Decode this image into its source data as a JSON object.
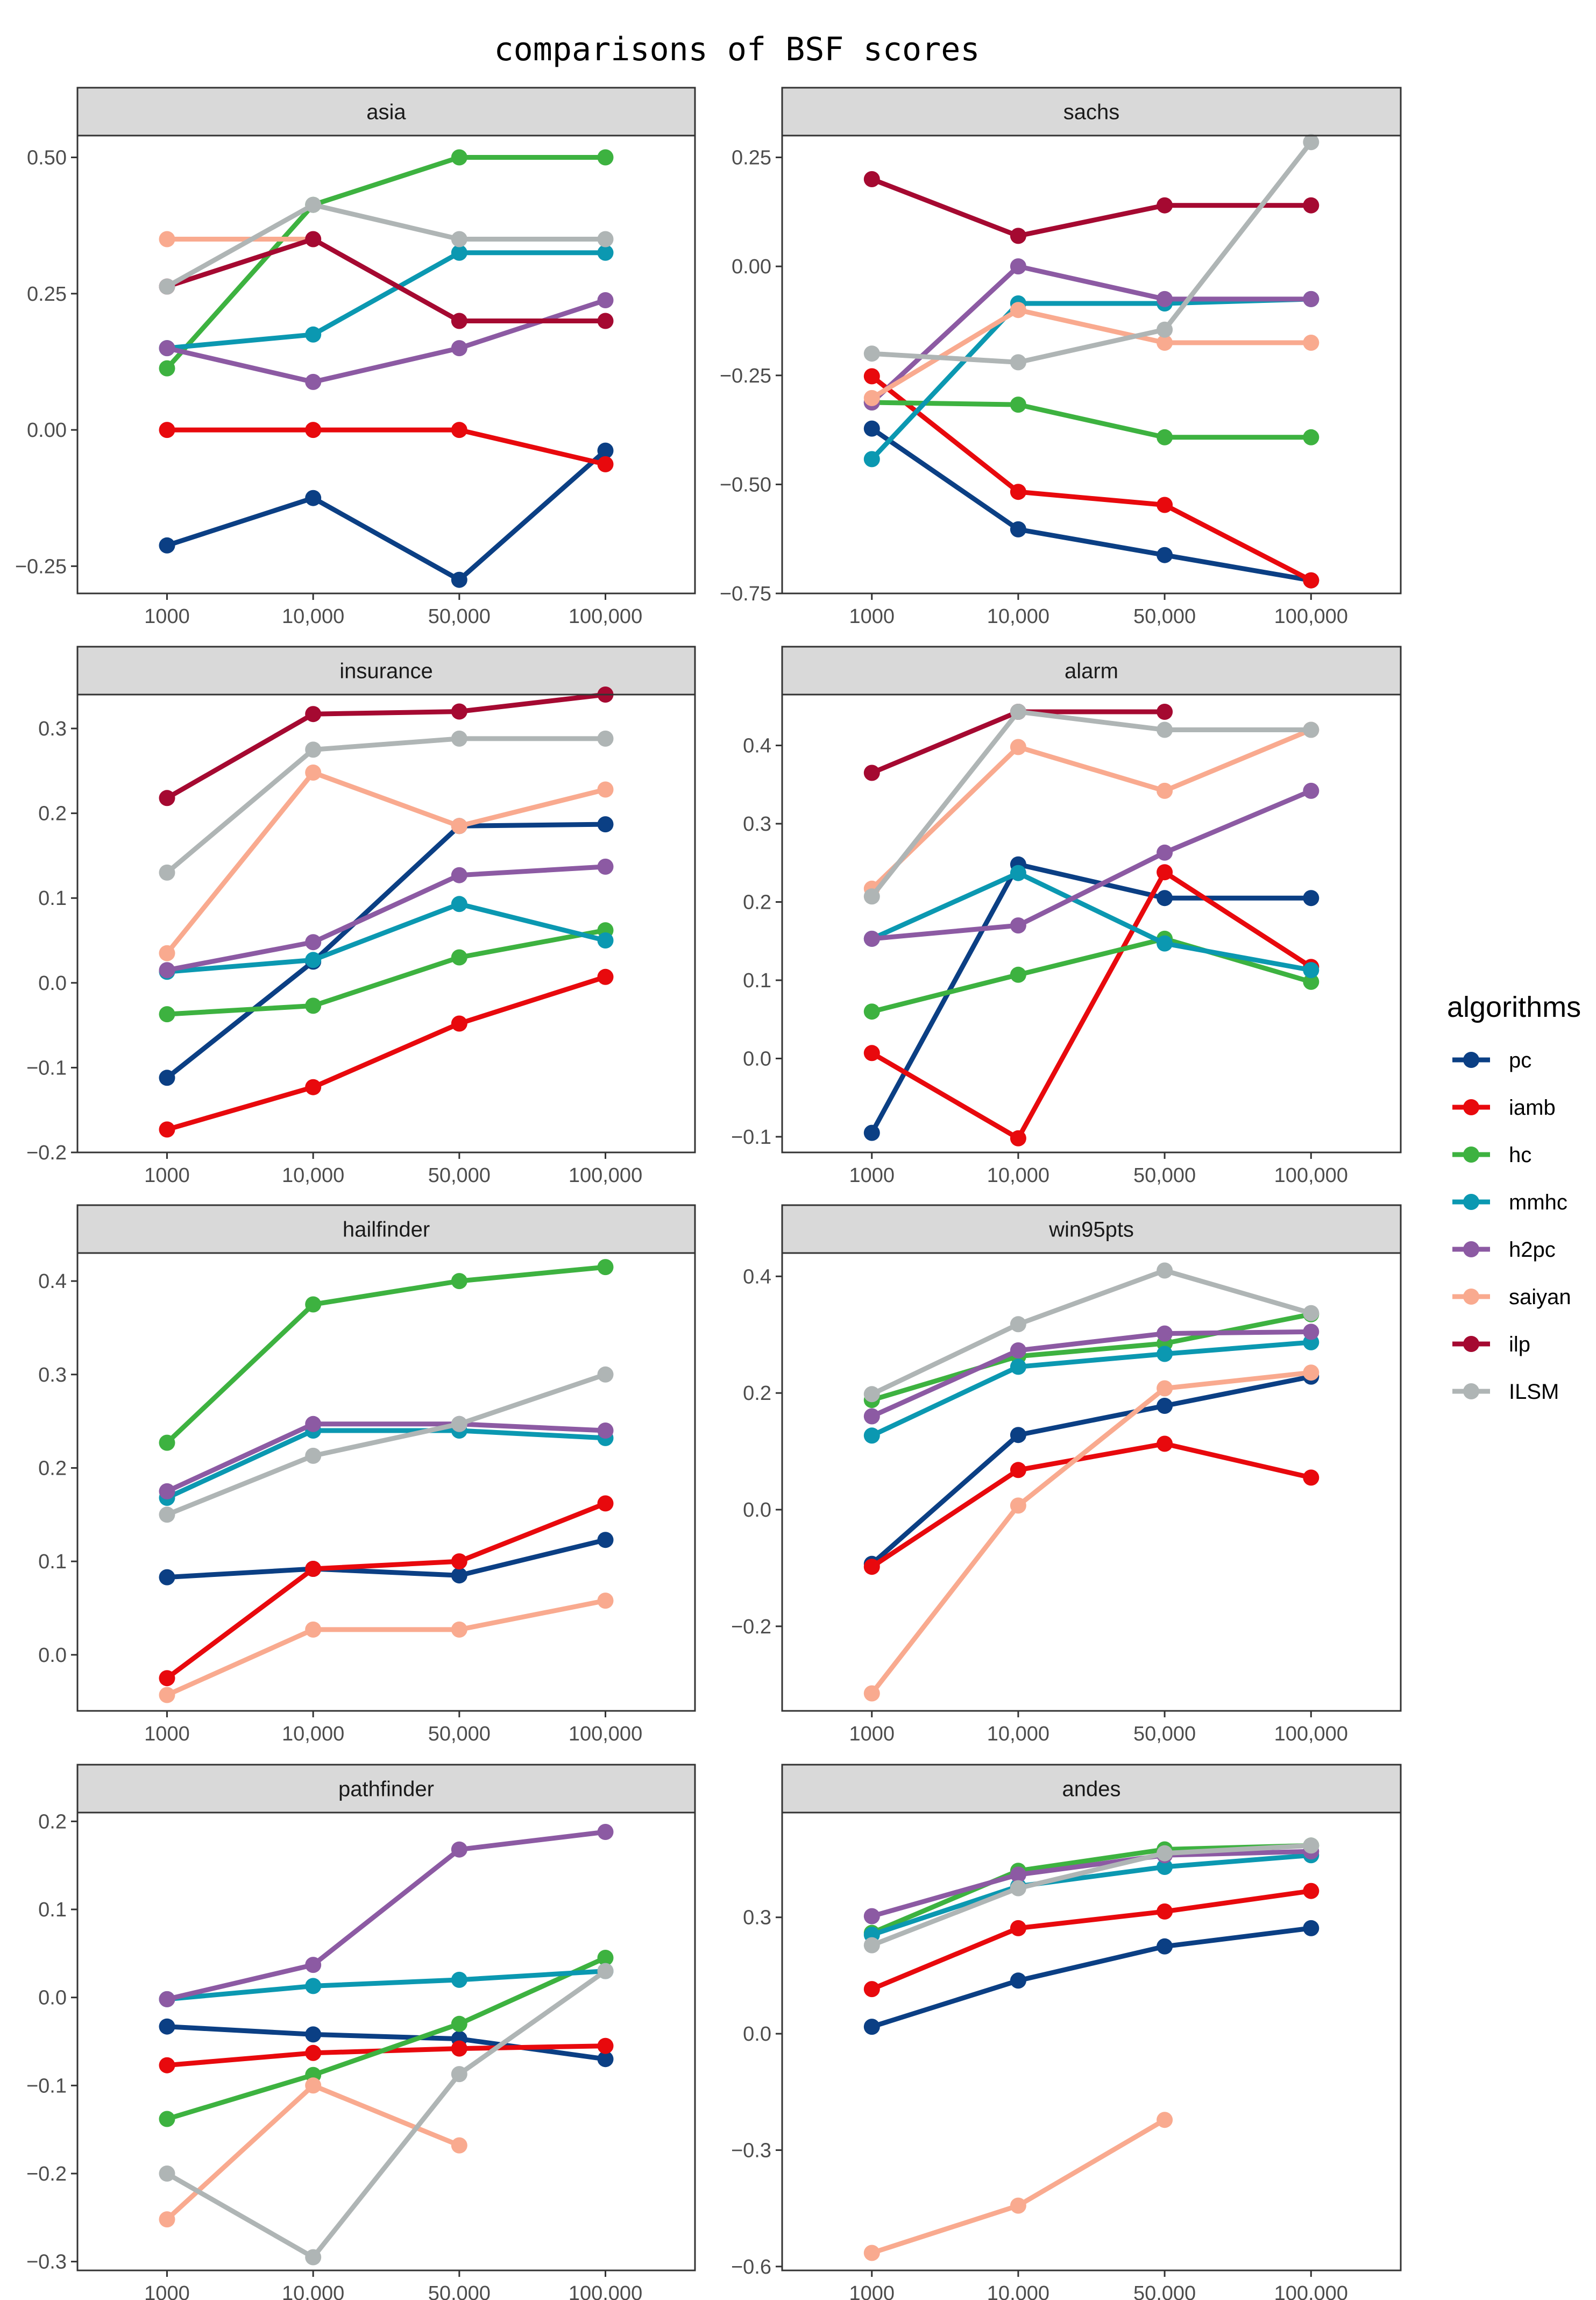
{
  "chart_data": {
    "title": "comparisons of BSF scores",
    "type": "line",
    "legend": {
      "title": "algorithms",
      "position": "right"
    },
    "x_categories": [
      "1000",
      "10,000",
      "50,000",
      "100,000"
    ],
    "series_styles": [
      {
        "name": "pc",
        "color": "#0B3F84"
      },
      {
        "name": "iamb",
        "color": "#E8090D"
      },
      {
        "name": "hc",
        "color": "#3DB240"
      },
      {
        "name": "mmhc",
        "color": "#0B98B1"
      },
      {
        "name": "h2pc",
        "color": "#8C5AA3"
      },
      {
        "name": "saiyan",
        "color": "#F9AA8F"
      },
      {
        "name": "ilp",
        "color": "#A50931"
      },
      {
        "name": "ILSM",
        "color": "#AFB5B5"
      }
    ],
    "panels": [
      {
        "name": "asia",
        "ylim": [
          -0.3,
          0.54
        ],
        "yticks": [
          -0.25,
          0.0,
          0.25,
          0.5
        ],
        "ytick_labels": [
          "−0.25",
          "0.00",
          "0.25",
          "0.50"
        ],
        "series": {
          "pc": [
            -0.212,
            -0.125,
            -0.275,
            -0.038
          ],
          "iamb": [
            0.0,
            0.0,
            0.0,
            -0.063
          ],
          "hc": [
            0.113,
            0.413,
            0.5,
            0.5
          ],
          "mmhc": [
            0.15,
            0.175,
            0.325,
            0.325
          ],
          "h2pc": [
            0.15,
            0.088,
            0.15,
            0.238
          ],
          "saiyan": [
            0.35,
            0.35,
            null,
            null
          ],
          "ilp": [
            0.263,
            0.35,
            0.2,
            0.2
          ],
          "ILSM": [
            0.263,
            0.413,
            0.35,
            0.35
          ]
        }
      },
      {
        "name": "sachs",
        "ylim": [
          -0.75,
          0.3
        ],
        "yticks": [
          -0.75,
          -0.5,
          -0.25,
          0.0,
          0.25
        ],
        "ytick_labels": [
          "−0.75",
          "−0.50",
          "−0.25",
          "0.00",
          "0.25"
        ],
        "series": {
          "pc": [
            -0.372,
            -0.603,
            -0.662,
            -0.72
          ],
          "iamb": [
            -0.252,
            -0.517,
            -0.547,
            -0.72
          ],
          "hc": [
            -0.312,
            -0.317,
            -0.392,
            -0.392
          ],
          "mmhc": [
            -0.442,
            -0.085,
            -0.085,
            -0.075
          ],
          "h2pc": [
            -0.312,
            0.0,
            -0.075,
            -0.075
          ],
          "saiyan": [
            -0.302,
            -0.1,
            -0.175,
            -0.175
          ],
          "ilp": [
            0.2,
            0.07,
            0.14,
            0.14
          ],
          "ILSM": [
            -0.2,
            -0.22,
            -0.145,
            0.285
          ]
        }
      },
      {
        "name": "insurance",
        "ylim": [
          -0.2,
          0.34
        ],
        "yticks": [
          -0.2,
          -0.1,
          0.0,
          0.1,
          0.2,
          0.3
        ],
        "ytick_labels": [
          "−0.2",
          "−0.1",
          "0.0",
          "0.1",
          "0.2",
          "0.3"
        ],
        "series": {
          "pc": [
            -0.112,
            0.025,
            0.185,
            0.187
          ],
          "iamb": [
            -0.173,
            -0.123,
            -0.048,
            0.007
          ],
          "hc": [
            -0.037,
            -0.027,
            0.03,
            0.062
          ],
          "mmhc": [
            0.013,
            0.027,
            0.093,
            0.05
          ],
          "h2pc": [
            0.015,
            0.048,
            0.127,
            0.137
          ],
          "saiyan": [
            0.035,
            0.248,
            0.185,
            0.228
          ],
          "ilp": [
            0.218,
            0.317,
            0.32,
            0.34
          ],
          "ILSM": [
            0.13,
            0.275,
            0.288,
            0.288
          ]
        }
      },
      {
        "name": "alarm",
        "ylim": [
          -0.12,
          0.465
        ],
        "yticks": [
          -0.1,
          0.0,
          0.1,
          0.2,
          0.3,
          0.4
        ],
        "ytick_labels": [
          "−0.1",
          "0.0",
          "0.1",
          "0.2",
          "0.3",
          "0.4"
        ],
        "series": {
          "pc": [
            -0.095,
            0.248,
            0.205,
            0.205
          ],
          "iamb": [
            0.007,
            -0.102,
            0.238,
            0.117
          ],
          "hc": [
            0.06,
            0.107,
            0.153,
            0.098
          ],
          "mmhc": [
            0.153,
            0.237,
            0.147,
            0.113
          ],
          "h2pc": [
            0.153,
            0.17,
            0.263,
            0.342
          ],
          "saiyan": [
            0.217,
            0.398,
            0.342,
            0.42
          ],
          "ilp": [
            0.365,
            0.443,
            0.443,
            null
          ],
          "ILSM": [
            0.207,
            0.443,
            0.42,
            0.42
          ]
        }
      },
      {
        "name": "hailfinder",
        "ylim": [
          -0.06,
          0.43
        ],
        "yticks": [
          0.0,
          0.1,
          0.2,
          0.3,
          0.4
        ],
        "ytick_labels": [
          "0.0",
          "0.1",
          "0.2",
          "0.3",
          "0.4"
        ],
        "series": {
          "pc": [
            0.083,
            0.092,
            0.085,
            0.123
          ],
          "iamb": [
            -0.025,
            0.092,
            0.1,
            0.162
          ],
          "hc": [
            0.227,
            0.375,
            0.4,
            0.415
          ],
          "mmhc": [
            0.168,
            0.24,
            0.24,
            0.232
          ],
          "h2pc": [
            0.175,
            0.247,
            0.247,
            0.24
          ],
          "saiyan": [
            -0.043,
            0.027,
            0.027,
            0.058
          ],
          "ilp": [
            null,
            null,
            null,
            null
          ],
          "ILSM": [
            0.15,
            0.213,
            0.247,
            0.3
          ]
        }
      },
      {
        "name": "win95pts",
        "ylim": [
          -0.345,
          0.44
        ],
        "yticks": [
          -0.2,
          0.0,
          0.2,
          0.4
        ],
        "ytick_labels": [
          "−0.2",
          "0.0",
          "0.2",
          "0.4"
        ],
        "series": {
          "pc": [
            -0.093,
            0.128,
            0.178,
            0.228
          ],
          "iamb": [
            -0.098,
            0.068,
            0.113,
            0.055
          ],
          "hc": [
            0.188,
            0.263,
            0.285,
            0.335
          ],
          "mmhc": [
            0.127,
            0.245,
            0.267,
            0.287
          ],
          "h2pc": [
            0.16,
            0.273,
            0.302,
            0.305
          ],
          "saiyan": [
            -0.315,
            0.007,
            0.208,
            0.235
          ],
          "ilp": [
            null,
            null,
            null,
            null
          ],
          "ILSM": [
            0.198,
            0.318,
            0.41,
            0.337
          ]
        }
      },
      {
        "name": "pathfinder",
        "ylim": [
          -0.31,
          0.21
        ],
        "yticks": [
          -0.3,
          -0.2,
          -0.1,
          0.0,
          0.1,
          0.2
        ],
        "ytick_labels": [
          "−0.3",
          "−0.2",
          "−0.1",
          "0.0",
          "0.1",
          "0.2"
        ],
        "series": {
          "pc": [
            -0.033,
            -0.042,
            -0.047,
            -0.07
          ],
          "iamb": [
            -0.077,
            -0.063,
            -0.058,
            -0.055
          ],
          "hc": [
            -0.138,
            -0.088,
            -0.03,
            0.045
          ],
          "mmhc": [
            -0.002,
            0.013,
            0.02,
            0.03
          ],
          "h2pc": [
            -0.002,
            0.037,
            0.168,
            0.188
          ],
          "saiyan": [
            -0.252,
            -0.1,
            -0.168,
            null
          ],
          "ilp": [
            null,
            null,
            null,
            null
          ],
          "ILSM": [
            -0.2,
            -0.295,
            -0.087,
            0.03
          ]
        }
      },
      {
        "name": "andes",
        "ylim": [
          -0.61,
          0.57
        ],
        "yticks": [
          -0.6,
          -0.3,
          0.0,
          0.3
        ],
        "ytick_labels": [
          "−0.6",
          "−0.3",
          "0.0",
          "0.3"
        ],
        "series": {
          "pc": [
            0.018,
            0.137,
            0.225,
            0.272
          ],
          "iamb": [
            0.115,
            0.272,
            0.315,
            0.368
          ],
          "hc": [
            0.26,
            0.42,
            0.475,
            0.485
          ],
          "mmhc": [
            0.255,
            0.38,
            0.43,
            0.46
          ],
          "h2pc": [
            0.303,
            0.41,
            0.46,
            0.47
          ],
          "saiyan": [
            -0.565,
            -0.443,
            -0.222,
            null
          ],
          "ilp": [
            null,
            null,
            null,
            null
          ],
          "ILSM": [
            0.228,
            0.375,
            0.465,
            0.485
          ]
        }
      }
    ]
  }
}
